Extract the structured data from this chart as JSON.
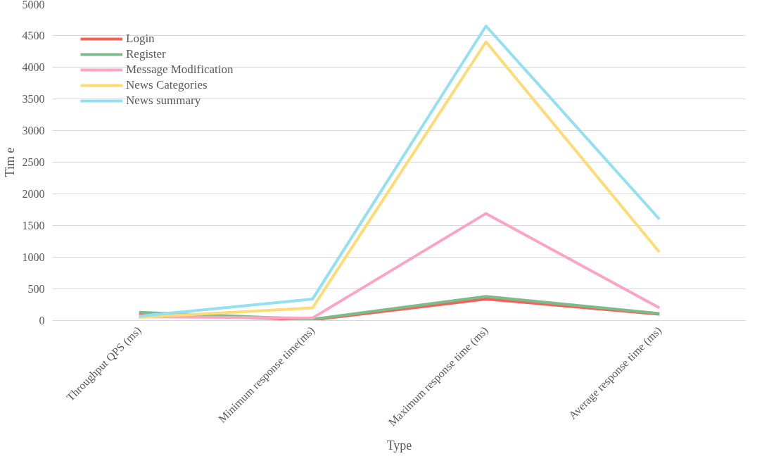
{
  "chart_data": {
    "type": "line",
    "xlabel": "Type",
    "ylabel": "Tim e",
    "categories": [
      "Throughput QPS (ms)",
      "Minimum response time(ms)",
      "Maximum response time (ms)",
      "Average response time (ms)"
    ],
    "series": [
      {
        "name": "Login",
        "color": "#f4615b",
        "values": [
          110,
          10,
          340,
          100
        ]
      },
      {
        "name": "Register",
        "color": "#7dbb8a",
        "values": [
          130,
          20,
          380,
          110
        ]
      },
      {
        "name": "Message Modification",
        "color": "#fda4c5",
        "values": [
          60,
          40,
          1690,
          200
        ]
      },
      {
        "name": "News Categories",
        "color": "#fedb74",
        "values": [
          50,
          200,
          4400,
          1080
        ]
      },
      {
        "name": "News summary",
        "color": "#92e0f1",
        "values": [
          70,
          340,
          4650,
          1600
        ]
      }
    ],
    "ylim": [
      0,
      5000
    ],
    "yticks": [
      0,
      500,
      1000,
      1500,
      2000,
      2500,
      3000,
      3500,
      4000,
      4500,
      5000
    ],
    "grid": "y",
    "legend": "top left",
    "marker": "none",
    "line_style": "solid"
  }
}
